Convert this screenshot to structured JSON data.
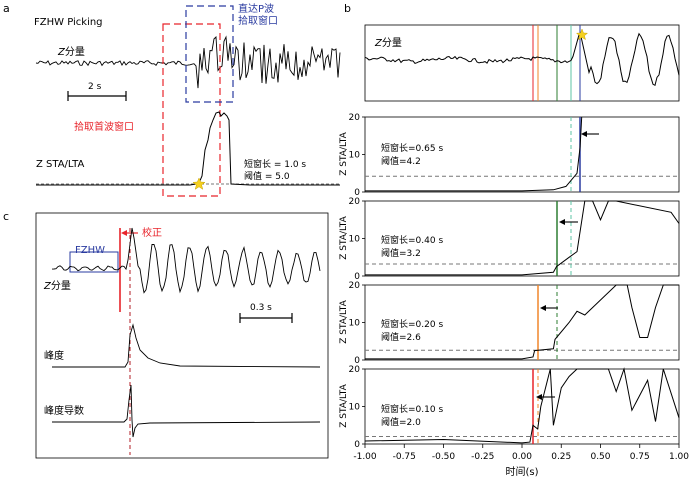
{
  "panel_a": {
    "letter": "a",
    "title": "FZHW Picking",
    "z_label_z": "Z",
    "z_label_cn": "分量",
    "scale_label": "2 s",
    "first_arrival_label": "拾取首波窗口",
    "direct_p_label_line1": "直达P波",
    "direct_p_label_line2": "拾取窗口",
    "sta_label": "Z STA/LTA",
    "params_line1": "短窗长 = 1.0 s",
    "params_line2": "阈值 = 5.0"
  },
  "panel_b": {
    "letter": "b",
    "z_label_z": "Z",
    "z_label_cn": "分量",
    "ylabel": "Z STA/LTA",
    "xlabel": "时间(s)",
    "xticks": [
      "-1.00",
      "-0.75",
      "-0.50",
      "-0.25",
      "0.00",
      "0.25",
      "0.50",
      "0.75",
      "1.00"
    ],
    "yticks": [
      "0",
      "10",
      "20"
    ],
    "rows": [
      {
        "window": "短窗长=0.65 s",
        "threshold": "阈值=4.2"
      },
      {
        "window": "短窗长=0.40 s",
        "threshold": "阈值=3.2"
      },
      {
        "window": "短窗长=0.20 s",
        "threshold": "阈值=2.6"
      },
      {
        "window": "短窗长=0.10 s",
        "threshold": "阈值=2.0"
      }
    ]
  },
  "panel_c": {
    "letter": "c",
    "fzhw_label": "FZHW",
    "correction_label": "校正",
    "z_label_z": "Z",
    "z_label_cn": "分量",
    "scale_label": "0.3 s",
    "kurtosis_label": "峰度",
    "kurtosis_deriv_label": "峰度导数"
  },
  "colors": {
    "red": "#e8242b",
    "dark_red": "#b01c24",
    "blue": "#2a3ba0",
    "green": "#2e7d32",
    "cyan": "#5cc6a6",
    "orange": "#f0862a",
    "gray": "#777777",
    "star": "#f5d020"
  },
  "chart_data": [
    {
      "type": "line",
      "title": "",
      "xlabel": "时间(s)",
      "ylabel": "Z STA/LTA",
      "xlim": [
        -1.0,
        1.0
      ],
      "ylim": [
        0,
        20
      ],
      "series": [
        {
          "name": "短窗长=0.65 s",
          "threshold": 4.2,
          "x": [
            -1.0,
            0.0,
            0.2,
            0.28,
            0.31,
            0.35,
            0.37,
            0.38
          ],
          "y": [
            0.3,
            0.3,
            0.6,
            1.5,
            3.0,
            5.0,
            12,
            20
          ]
        },
        {
          "name": "短窗长=0.40 s",
          "threshold": 3.2,
          "x": [
            -1.0,
            0.0,
            0.2,
            0.22,
            0.3,
            0.35,
            0.4,
            0.45,
            0.5,
            0.55,
            0.6,
            0.95,
            1.0
          ],
          "y": [
            0.3,
            0.3,
            1.0,
            2.5,
            5.0,
            6.5,
            20,
            20,
            15,
            20,
            20,
            17,
            14
          ]
        },
        {
          "name": "短窗长=0.20 s",
          "threshold": 2.6,
          "x": [
            -1.0,
            0.0,
            0.07,
            0.08,
            0.2,
            0.21,
            0.3,
            0.35,
            0.4,
            0.5,
            0.6,
            0.67,
            0.7,
            0.75,
            0.8,
            0.85,
            0.9,
            1.0
          ],
          "y": [
            0.3,
            0.3,
            0.8,
            2.5,
            3.0,
            5.5,
            10,
            13,
            12,
            16,
            20,
            20,
            14,
            6,
            6,
            14,
            20,
            20
          ]
        },
        {
          "name": "短窗长=0.10 s",
          "threshold": 2.0,
          "x": [
            -1.0,
            -0.5,
            0.0,
            0.05,
            0.07,
            0.1,
            0.12,
            0.18,
            0.2,
            0.25,
            0.3,
            0.35,
            0.45,
            0.55,
            0.6,
            0.65,
            0.7,
            0.8,
            0.85,
            0.9,
            1.0
          ],
          "y": [
            0.8,
            1.2,
            0.3,
            0.5,
            5.0,
            4.0,
            10,
            20,
            5,
            15,
            18,
            20,
            20,
            20,
            14,
            20,
            9,
            17,
            6,
            20,
            7
          ]
        }
      ]
    }
  ]
}
